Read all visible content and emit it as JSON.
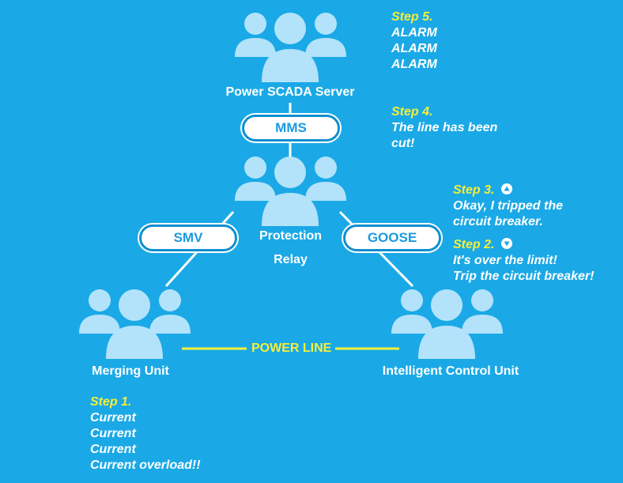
{
  "nodes": {
    "scada": {
      "label": "Power SCADA Server"
    },
    "relay": {
      "label_line1": "Protection",
      "label_line2": "Relay"
    },
    "merging": {
      "label": "Merging Unit"
    },
    "icu": {
      "label": "Intelligent Control Unit"
    }
  },
  "links": {
    "mms": "MMS",
    "smv": "SMV",
    "goose": "GOOSE",
    "power_line": "POWER LINE"
  },
  "steps": {
    "step5": {
      "title": "Step 5.",
      "lines": [
        "ALARM",
        "ALARM",
        "ALARM"
      ]
    },
    "step4": {
      "title": "Step 4.",
      "lines": [
        "The line has been",
        "cut!"
      ]
    },
    "step3": {
      "title": "Step 3.",
      "icon": "triangle-up-icon",
      "lines": [
        "Okay, I tripped the",
        "circuit breaker."
      ]
    },
    "step2": {
      "title": "Step 2.",
      "icon": "triangle-down-icon",
      "lines": [
        "It's over the limit!",
        "Trip the circuit breaker!"
      ]
    },
    "step1": {
      "title": "Step 1.",
      "lines": [
        "Current",
        "Current",
        "Current",
        "Current overload!!"
      ]
    }
  },
  "colors": {
    "background": "#1aa9e6",
    "people": "#b3e3fb",
    "step_title": "#f5ee3b",
    "power_line": "#f5ee3b",
    "pill_text": "#1a9be0"
  },
  "icons": [
    "people-group-icon",
    "triangle-up-icon",
    "triangle-down-icon"
  ]
}
